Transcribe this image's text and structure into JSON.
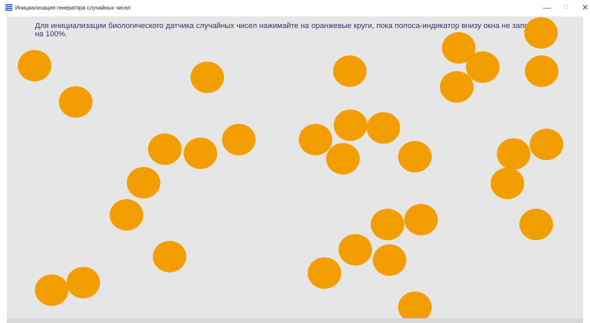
{
  "window": {
    "title": "Инициализация генератора случайных чисел",
    "minimize_label": "—",
    "maximize_label": "☐",
    "close_label": "✕"
  },
  "content": {
    "instruction": "Для инициализации биологического датчика случайных чисел нажимайте на оранжевые круги, пока полоса-индикатор внизу окна не заполнится на 100%."
  },
  "progress": {
    "fraction": 0
  },
  "colors": {
    "circle": "#f39e00",
    "background": "#e6e6e6",
    "text": "#333366"
  },
  "circles": {
    "count": 36
  }
}
